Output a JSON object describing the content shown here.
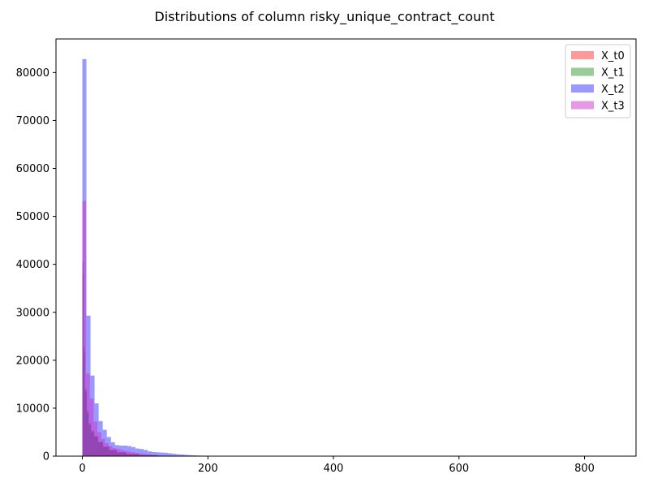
{
  "chart_data": {
    "type": "bar",
    "title": "Distributions of column risky_unique_contract_count",
    "xlabel": "",
    "ylabel": "",
    "xlim": [
      -42,
      882
    ],
    "ylim": [
      0,
      87000
    ],
    "x_ticks": [
      0,
      200,
      400,
      600,
      800
    ],
    "y_ticks": [
      0,
      10000,
      20000,
      30000,
      40000,
      50000,
      60000,
      70000,
      80000
    ],
    "grid": false,
    "legend_position": "top-right",
    "series": [
      {
        "name": "X_t0",
        "color": "#ff0000",
        "opacity": 0.4,
        "bins": [
          {
            "x0": 0,
            "x1": 2,
            "count": 40500
          },
          {
            "x0": 2,
            "x1": 4,
            "count": 22800
          },
          {
            "x0": 4,
            "x1": 7,
            "count": 14000
          },
          {
            "x0": 7,
            "x1": 10,
            "count": 9500
          },
          {
            "x0": 10,
            "x1": 14,
            "count": 6900
          },
          {
            "x0": 14,
            "x1": 19,
            "count": 5300
          },
          {
            "x0": 19,
            "x1": 25,
            "count": 4200
          },
          {
            "x0": 25,
            "x1": 33,
            "count": 3000
          },
          {
            "x0": 33,
            "x1": 43,
            "count": 2000
          },
          {
            "x0": 43,
            "x1": 55,
            "count": 1300
          },
          {
            "x0": 55,
            "x1": 70,
            "count": 800
          },
          {
            "x0": 70,
            "x1": 90,
            "count": 450
          },
          {
            "x0": 90,
            "x1": 120,
            "count": 220
          },
          {
            "x0": 120,
            "x1": 170,
            "count": 90
          }
        ]
      },
      {
        "name": "X_t1",
        "color": "#008000",
        "opacity": 0.4,
        "bins": [
          {
            "x0": 0,
            "x1": 2,
            "count": 38000
          },
          {
            "x0": 2,
            "x1": 4,
            "count": 21500
          },
          {
            "x0": 4,
            "x1": 7,
            "count": 13500
          },
          {
            "x0": 7,
            "x1": 10,
            "count": 9000
          },
          {
            "x0": 10,
            "x1": 14,
            "count": 6500
          },
          {
            "x0": 14,
            "x1": 19,
            "count": 5000
          },
          {
            "x0": 19,
            "x1": 25,
            "count": 4000
          },
          {
            "x0": 25,
            "x1": 33,
            "count": 2900
          },
          {
            "x0": 33,
            "x1": 43,
            "count": 1900
          },
          {
            "x0": 43,
            "x1": 55,
            "count": 1250
          },
          {
            "x0": 55,
            "x1": 70,
            "count": 780
          },
          {
            "x0": 70,
            "x1": 90,
            "count": 430
          },
          {
            "x0": 90,
            "x1": 120,
            "count": 210
          },
          {
            "x0": 120,
            "x1": 170,
            "count": 85
          }
        ]
      },
      {
        "name": "X_t2",
        "color": "#0000ff",
        "opacity": 0.4,
        "bins": [
          {
            "x0": 0,
            "x1": 6.5,
            "count": 82800
          },
          {
            "x0": 6.5,
            "x1": 13,
            "count": 29300
          },
          {
            "x0": 13,
            "x1": 19.5,
            "count": 16800
          },
          {
            "x0": 19.5,
            "x1": 26,
            "count": 11000
          },
          {
            "x0": 26,
            "x1": 32.5,
            "count": 7300
          },
          {
            "x0": 32.5,
            "x1": 39,
            "count": 5500
          },
          {
            "x0": 39,
            "x1": 45.5,
            "count": 4000
          },
          {
            "x0": 45.5,
            "x1": 52,
            "count": 2900
          },
          {
            "x0": 52,
            "x1": 58.5,
            "count": 2300
          },
          {
            "x0": 58.5,
            "x1": 65,
            "count": 2200
          },
          {
            "x0": 65,
            "x1": 71.5,
            "count": 2200
          },
          {
            "x0": 71.5,
            "x1": 78,
            "count": 2100
          },
          {
            "x0": 78,
            "x1": 84.5,
            "count": 1900
          },
          {
            "x0": 84.5,
            "x1": 91,
            "count": 1600
          },
          {
            "x0": 91,
            "x1": 97.5,
            "count": 1500
          },
          {
            "x0": 97.5,
            "x1": 104,
            "count": 1300
          },
          {
            "x0": 104,
            "x1": 110.5,
            "count": 1000
          },
          {
            "x0": 110.5,
            "x1": 117,
            "count": 850
          },
          {
            "x0": 117,
            "x1": 123.5,
            "count": 800
          },
          {
            "x0": 123.5,
            "x1": 130,
            "count": 750
          },
          {
            "x0": 130,
            "x1": 136.5,
            "count": 700
          },
          {
            "x0": 136.5,
            "x1": 143,
            "count": 600
          },
          {
            "x0": 143,
            "x1": 149.5,
            "count": 500
          },
          {
            "x0": 149.5,
            "x1": 156,
            "count": 400
          },
          {
            "x0": 156,
            "x1": 162.5,
            "count": 350
          },
          {
            "x0": 162.5,
            "x1": 169,
            "count": 280
          },
          {
            "x0": 169,
            "x1": 175.5,
            "count": 220
          },
          {
            "x0": 175.5,
            "x1": 182,
            "count": 170
          },
          {
            "x0": 182,
            "x1": 188.5,
            "count": 130
          },
          {
            "x0": 188.5,
            "x1": 195,
            "count": 100
          },
          {
            "x0": 195,
            "x1": 201.5,
            "count": 80
          },
          {
            "x0": 201.5,
            "x1": 208,
            "count": 60
          },
          {
            "x0": 208,
            "x1": 230,
            "count": 40
          },
          {
            "x0": 230,
            "x1": 280,
            "count": 20
          },
          {
            "x0": 280,
            "x1": 420,
            "count": 10
          },
          {
            "x0": 420,
            "x1": 840,
            "count": 5
          }
        ]
      },
      {
        "name": "X_t3",
        "color": "#cc33cc",
        "opacity": 0.5,
        "bins": [
          {
            "x0": 0,
            "x1": 6,
            "count": 53200
          },
          {
            "x0": 6,
            "x1": 12,
            "count": 17200
          },
          {
            "x0": 12,
            "x1": 18,
            "count": 12000
          },
          {
            "x0": 18,
            "x1": 24,
            "count": 7200
          },
          {
            "x0": 24,
            "x1": 30,
            "count": 5000
          },
          {
            "x0": 30,
            "x1": 36,
            "count": 3600
          },
          {
            "x0": 36,
            "x1": 42,
            "count": 2700
          },
          {
            "x0": 42,
            "x1": 48,
            "count": 2100
          },
          {
            "x0": 48,
            "x1": 54,
            "count": 1700
          },
          {
            "x0": 54,
            "x1": 60,
            "count": 1500
          },
          {
            "x0": 60,
            "x1": 66,
            "count": 1300
          },
          {
            "x0": 66,
            "x1": 72,
            "count": 1100
          },
          {
            "x0": 72,
            "x1": 78,
            "count": 950
          },
          {
            "x0": 78,
            "x1": 84,
            "count": 800
          },
          {
            "x0": 84,
            "x1": 90,
            "count": 650
          },
          {
            "x0": 90,
            "x1": 96,
            "count": 550
          },
          {
            "x0": 96,
            "x1": 102,
            "count": 450
          },
          {
            "x0": 102,
            "x1": 108,
            "count": 350
          },
          {
            "x0": 108,
            "x1": 114,
            "count": 280
          },
          {
            "x0": 114,
            "x1": 120,
            "count": 220
          },
          {
            "x0": 120,
            "x1": 132,
            "count": 150
          },
          {
            "x0": 132,
            "x1": 150,
            "count": 90
          },
          {
            "x0": 150,
            "x1": 180,
            "count": 40
          }
        ]
      }
    ]
  }
}
